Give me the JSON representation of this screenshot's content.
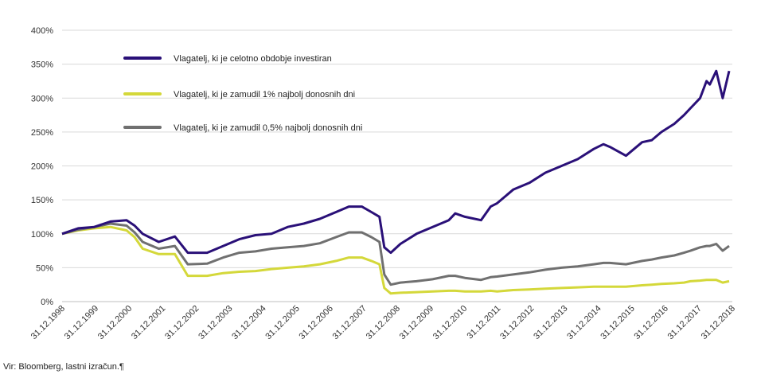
{
  "chart_data": {
    "type": "line",
    "title": "",
    "xlabel": "",
    "ylabel": "",
    "ylim": [
      0,
      400
    ],
    "y_ticks": [
      0,
      50,
      100,
      150,
      200,
      250,
      300,
      350,
      400
    ],
    "y_tick_labels": [
      "0%",
      "50%",
      "100%",
      "150%",
      "200%",
      "250%",
      "300%",
      "350%",
      "400%"
    ],
    "x_tick_labels": [
      "31.12.1998",
      "31.12.1999",
      "31.12.2000",
      "31.12.2001",
      "31.12.2002",
      "31.12.2003",
      "31.12.2004",
      "31.12.2005",
      "31.12.2006",
      "31.12.2007",
      "31.12.2008",
      "31.12.2009",
      "31.12.2010",
      "31.12.2011",
      "31.12.2012",
      "31.12.2013",
      "31.12.2014",
      "31.12.2015",
      "31.12.2016",
      "31.12.2017",
      "31.12.2018"
    ],
    "grid": "horizontal",
    "legend_position": "top-left",
    "x": [
      1998.0,
      1998.5,
      1999.0,
      1999.5,
      2000.0,
      2000.25,
      2000.5,
      2001.0,
      2001.5,
      2001.9,
      2002.5,
      2003.0,
      2003.5,
      2004.0,
      2004.5,
      2005.0,
      2005.5,
      2006.0,
      2006.5,
      2006.9,
      2007.3,
      2007.6,
      2007.85,
      2008.0,
      2008.2,
      2008.5,
      2009.0,
      2009.5,
      2010.0,
      2010.2,
      2010.5,
      2011.0,
      2011.3,
      2011.5,
      2012.0,
      2012.5,
      2013.0,
      2013.5,
      2014.0,
      2014.5,
      2014.8,
      2015.0,
      2015.5,
      2016.0,
      2016.3,
      2016.6,
      2017.0,
      2017.3,
      2017.5,
      2017.8,
      2018.0,
      2018.1,
      2018.3,
      2018.5,
      2018.7
    ],
    "series": [
      {
        "name": "Vlagatelj, ki je celotno obdobje investiran",
        "color": "#2a1078",
        "values": [
          100,
          108,
          110,
          118,
          120,
          112,
          100,
          88,
          96,
          72,
          72,
          82,
          92,
          98,
          100,
          110,
          115,
          122,
          132,
          140,
          140,
          132,
          125,
          80,
          72,
          85,
          100,
          110,
          120,
          130,
          125,
          120,
          140,
          145,
          165,
          175,
          190,
          200,
          210,
          225,
          232,
          228,
          215,
          235,
          238,
          250,
          262,
          275,
          285,
          300,
          325,
          320,
          340,
          300,
          340
        ]
      },
      {
        "name": "Vlagatelj, ki je zamudil 1% najbolj donosnih dni",
        "color": "#d4d83a",
        "values": [
          100,
          105,
          108,
          110,
          105,
          95,
          78,
          70,
          70,
          38,
          38,
          42,
          44,
          45,
          48,
          50,
          52,
          55,
          60,
          65,
          65,
          60,
          55,
          20,
          12,
          13,
          14,
          15,
          16,
          16,
          15,
          15,
          16,
          15,
          17,
          18,
          19,
          20,
          21,
          22,
          22,
          22,
          22,
          24,
          25,
          26,
          27,
          28,
          30,
          31,
          32,
          32,
          32,
          28,
          30
        ]
      },
      {
        "name": "Vlagatelj, ki je zamudil 0,5% najbolj donosnih dni",
        "color": "#707070",
        "values": [
          100,
          106,
          110,
          115,
          112,
          102,
          88,
          78,
          82,
          55,
          56,
          65,
          72,
          74,
          78,
          80,
          82,
          86,
          95,
          102,
          102,
          95,
          88,
          40,
          25,
          28,
          30,
          33,
          38,
          38,
          35,
          32,
          36,
          37,
          40,
          43,
          47,
          50,
          52,
          55,
          57,
          57,
          55,
          60,
          62,
          65,
          68,
          72,
          75,
          80,
          82,
          82,
          85,
          75,
          82
        ]
      }
    ]
  },
  "source_note": "Vir: Bloomberg, lastni izračun.¶"
}
